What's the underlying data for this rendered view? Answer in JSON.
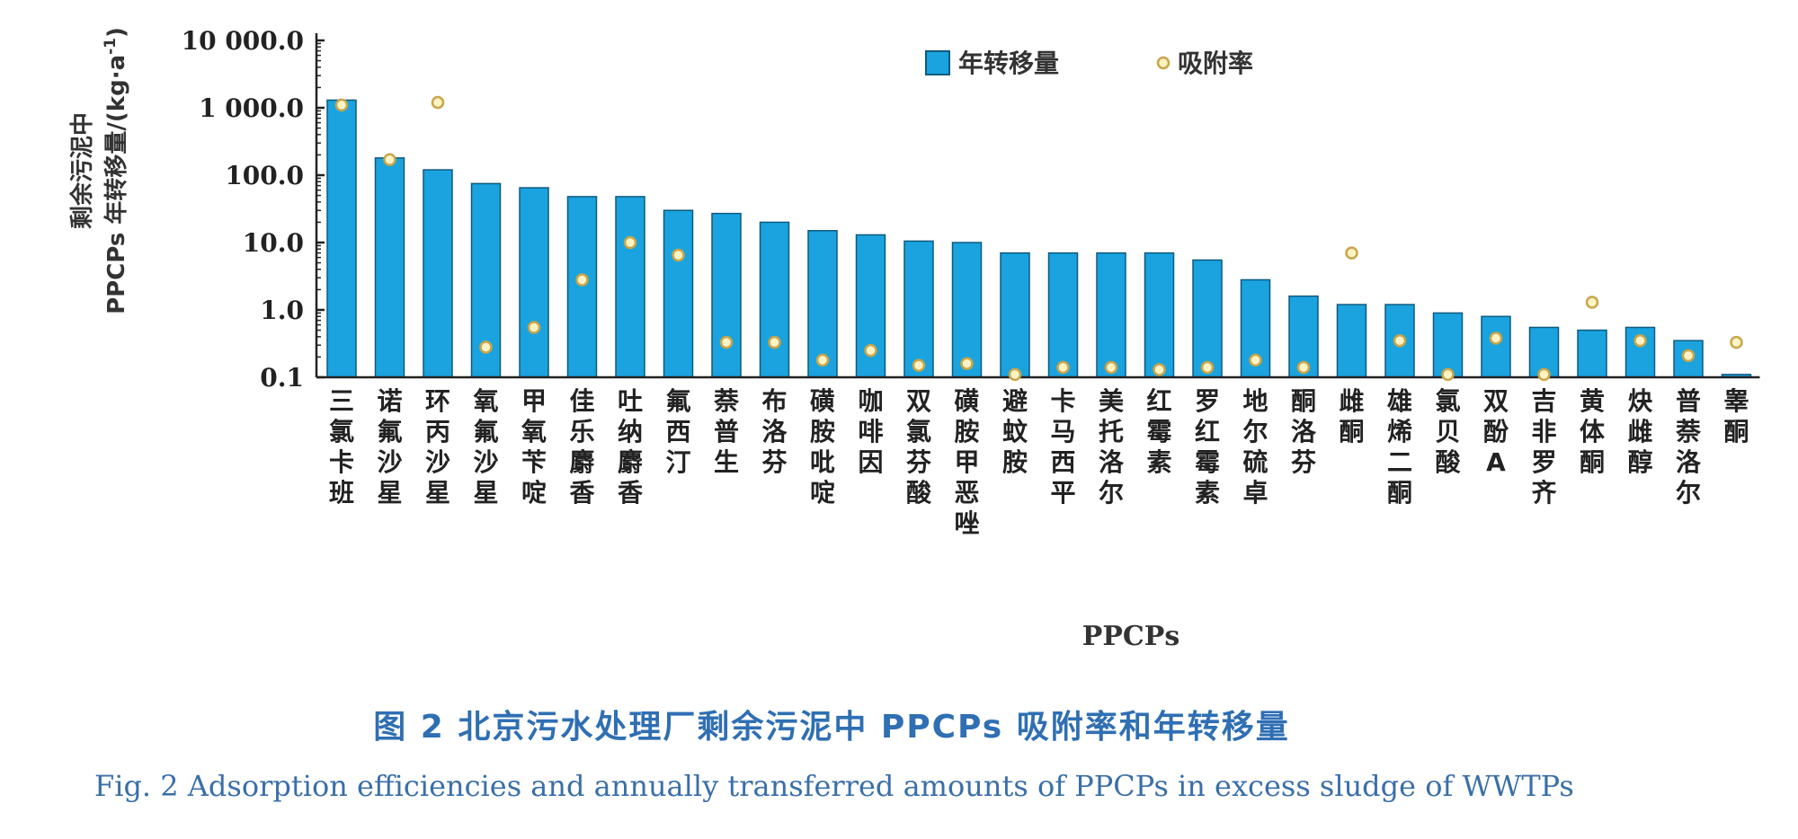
{
  "chart_data": {
    "type": "bar",
    "y_scale": "log",
    "ylim": [
      0.1,
      10000
    ],
    "y_ticks": [
      "10 000.0",
      "1 000.0",
      "100.0",
      "10.0",
      "1.0",
      "0.1"
    ],
    "ylabel_line1": "剩余污泥中",
    "ylabel_line2": "PPCPs 年转移量/(kg·a",
    "ylabel_sup": "-1",
    "ylabel_end": ")",
    "xlabel": "PPCPs",
    "legend": {
      "placement": "top-center",
      "bar_label": "年转移量",
      "point_label": "吸附率"
    },
    "colors": {
      "bar": "#1aa3de",
      "bar_edge": "#0d5a80",
      "point_fill": "#fff3c4",
      "point_edge": "#c9a54a"
    },
    "categories": [
      "三氯卡班",
      "诺氟沙星",
      "环丙沙星",
      "氧氟沙星",
      "甲氧苄啶",
      "佳乐麝香",
      "吐纳麝香",
      "氟西汀",
      "萘普生",
      "布洛芬",
      "磺胺吡啶",
      "咖啡因",
      "双氯芬酸",
      "磺胺甲恶唑",
      "避蚊胺",
      "卡马西平",
      "美托洛尔",
      "红霉素",
      "罗红霉素",
      "地尔硫卓",
      "酮洛芬",
      "雌酮",
      "雄烯二酮",
      "氯贝酸",
      "双酚A",
      "吉非罗齐",
      "黄体酮",
      "炔雌醇",
      "普萘洛尔",
      "睾酮"
    ],
    "series": [
      {
        "name": "年转移量",
        "kind": "bar",
        "values": [
          1300,
          180,
          120,
          75,
          65,
          48,
          48,
          30,
          27,
          20,
          15,
          13,
          10.5,
          10,
          7,
          7,
          7,
          7,
          5.5,
          2.8,
          1.6,
          1.2,
          1.2,
          0.9,
          0.8,
          0.55,
          0.5,
          0.55,
          0.35,
          0.11
        ]
      },
      {
        "name": "吸附率",
        "kind": "scatter",
        "values": [
          1100,
          170,
          1200,
          0.28,
          0.55,
          2.8,
          10,
          6.5,
          0.33,
          0.33,
          0.18,
          0.25,
          0.15,
          0.16,
          0.11,
          0.14,
          0.14,
          0.13,
          0.14,
          0.18,
          0.14,
          7,
          0.35,
          0.11,
          0.38,
          0.11,
          1.3,
          0.35,
          0.21,
          0.33
        ]
      }
    ]
  },
  "caption": {
    "cn": "图 2    北京污水处理厂剩余污泥中 PPCPs 吸附率和年转移量",
    "en": "Fig. 2    Adsorption efficiencies and annually transferred amounts of PPCPs in excess sludge of WWTPs"
  }
}
